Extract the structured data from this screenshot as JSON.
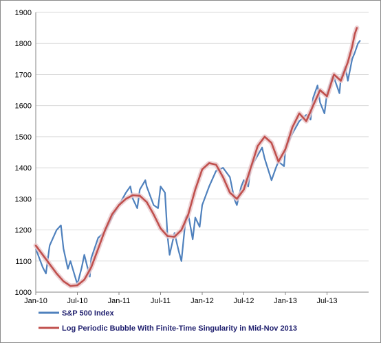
{
  "chart_data": {
    "type": "line",
    "title": "",
    "xlabel": "",
    "ylabel": "",
    "ylim": [
      1000,
      1900
    ],
    "yticks": [
      1000,
      1100,
      1200,
      1300,
      1400,
      1500,
      1600,
      1700,
      1800,
      1900
    ],
    "xlim": [
      "2010-01",
      "2014-01"
    ],
    "xticks": [
      {
        "label": "Jan-10",
        "date": "2010-01"
      },
      {
        "label": "Jul-10",
        "date": "2010-07"
      },
      {
        "label": "Jan-11",
        "date": "2011-01"
      },
      {
        "label": "Jul-11",
        "date": "2011-07"
      },
      {
        "label": "Jan-12",
        "date": "2012-01"
      },
      {
        "label": "Jul-12",
        "date": "2012-07"
      },
      {
        "label": "Jan-13",
        "date": "2013-01"
      },
      {
        "label": "Jul-13",
        "date": "2013-07"
      }
    ],
    "grid": "horizontal",
    "legend": "bottom-left",
    "series": [
      {
        "name": "S&P 500 Index",
        "color": "#4f81bd",
        "points": [
          [
            "2010-01",
            1140
          ],
          [
            "2010-02",
            1080
          ],
          [
            "2010-02-15",
            1060
          ],
          [
            "2010-03",
            1150
          ],
          [
            "2010-04",
            1200
          ],
          [
            "2010-04-20",
            1215
          ],
          [
            "2010-05",
            1140
          ],
          [
            "2010-05-20",
            1075
          ],
          [
            "2010-06",
            1100
          ],
          [
            "2010-07",
            1025
          ],
          [
            "2010-07-20",
            1080
          ],
          [
            "2010-08",
            1120
          ],
          [
            "2010-08-25",
            1050
          ],
          [
            "2010-09",
            1110
          ],
          [
            "2010-10",
            1175
          ],
          [
            "2010-11",
            1195
          ],
          [
            "2010-12",
            1240
          ],
          [
            "2011-01",
            1280
          ],
          [
            "2011-02",
            1320
          ],
          [
            "2011-02-20",
            1340
          ],
          [
            "2011-03",
            1300
          ],
          [
            "2011-03-20",
            1270
          ],
          [
            "2011-04",
            1330
          ],
          [
            "2011-04-25",
            1360
          ],
          [
            "2011-05",
            1340
          ],
          [
            "2011-06",
            1280
          ],
          [
            "2011-06-20",
            1270
          ],
          [
            "2011-07",
            1340
          ],
          [
            "2011-07-20",
            1320
          ],
          [
            "2011-08",
            1180
          ],
          [
            "2011-08-10",
            1120
          ],
          [
            "2011-09",
            1190
          ],
          [
            "2011-09-20",
            1130
          ],
          [
            "2011-10",
            1100
          ],
          [
            "2011-10-20",
            1240
          ],
          [
            "2011-11",
            1250
          ],
          [
            "2011-11-20",
            1170
          ],
          [
            "2011-12",
            1240
          ],
          [
            "2011-12-20",
            1210
          ],
          [
            "2012-01",
            1280
          ],
          [
            "2012-02",
            1340
          ],
          [
            "2012-03",
            1390
          ],
          [
            "2012-04",
            1400
          ],
          [
            "2012-05",
            1370
          ],
          [
            "2012-05-20",
            1300
          ],
          [
            "2012-06",
            1280
          ],
          [
            "2012-06-20",
            1340
          ],
          [
            "2012-07",
            1360
          ],
          [
            "2012-07-20",
            1340
          ],
          [
            "2012-08",
            1400
          ],
          [
            "2012-09",
            1440
          ],
          [
            "2012-09-20",
            1465
          ],
          [
            "2012-10",
            1430
          ],
          [
            "2012-11",
            1360
          ],
          [
            "2012-11-20",
            1400
          ],
          [
            "2012-12",
            1420
          ],
          [
            "2012-12-25",
            1405
          ],
          [
            "2013-01",
            1460
          ],
          [
            "2013-02",
            1510
          ],
          [
            "2013-03",
            1550
          ],
          [
            "2013-04",
            1570
          ],
          [
            "2013-04-20",
            1555
          ],
          [
            "2013-05",
            1625
          ],
          [
            "2013-05-20",
            1665
          ],
          [
            "2013-06",
            1610
          ],
          [
            "2013-06-20",
            1575
          ],
          [
            "2013-07",
            1640
          ],
          [
            "2013-07-25",
            1695
          ],
          [
            "2013-08",
            1690
          ],
          [
            "2013-08-25",
            1640
          ],
          [
            "2013-09",
            1690
          ],
          [
            "2013-09-20",
            1725
          ],
          [
            "2013-10",
            1680
          ],
          [
            "2013-10-20",
            1750
          ],
          [
            "2013-11",
            1770
          ],
          [
            "2013-11-15",
            1800
          ],
          [
            "2013-11-25",
            1810
          ]
        ]
      },
      {
        "name": "Log Periodic Bubble With Finite-Time Singularity in Mid-Nov 2013",
        "color": "#c0504d",
        "points": [
          [
            "2010-01",
            1150
          ],
          [
            "2010-02",
            1120
          ],
          [
            "2010-03",
            1090
          ],
          [
            "2010-04",
            1060
          ],
          [
            "2010-05",
            1035
          ],
          [
            "2010-06",
            1020
          ],
          [
            "2010-07",
            1022
          ],
          [
            "2010-08",
            1040
          ],
          [
            "2010-09",
            1080
          ],
          [
            "2010-10",
            1140
          ],
          [
            "2010-11",
            1200
          ],
          [
            "2010-12",
            1250
          ],
          [
            "2011-01",
            1280
          ],
          [
            "2011-02",
            1300
          ],
          [
            "2011-03",
            1312
          ],
          [
            "2011-04",
            1310
          ],
          [
            "2011-05",
            1290
          ],
          [
            "2011-06",
            1250
          ],
          [
            "2011-07",
            1205
          ],
          [
            "2011-08",
            1180
          ],
          [
            "2011-09",
            1178
          ],
          [
            "2011-10",
            1200
          ],
          [
            "2011-11",
            1250
          ],
          [
            "2011-12",
            1330
          ],
          [
            "2012-01",
            1395
          ],
          [
            "2012-02",
            1415
          ],
          [
            "2012-03",
            1410
          ],
          [
            "2012-04",
            1370
          ],
          [
            "2012-05",
            1320
          ],
          [
            "2012-06",
            1300
          ],
          [
            "2012-07",
            1330
          ],
          [
            "2012-08",
            1400
          ],
          [
            "2012-09",
            1470
          ],
          [
            "2012-10",
            1500
          ],
          [
            "2012-11",
            1480
          ],
          [
            "2012-12",
            1420
          ],
          [
            "2013-01",
            1460
          ],
          [
            "2013-02",
            1530
          ],
          [
            "2013-03",
            1575
          ],
          [
            "2013-04",
            1550
          ],
          [
            "2013-05",
            1600
          ],
          [
            "2013-06",
            1650
          ],
          [
            "2013-07",
            1630
          ],
          [
            "2013-08",
            1700
          ],
          [
            "2013-09",
            1680
          ],
          [
            "2013-10",
            1740
          ],
          [
            "2013-10-20",
            1790
          ],
          [
            "2013-11",
            1830
          ],
          [
            "2013-11-10",
            1850
          ]
        ]
      }
    ]
  }
}
